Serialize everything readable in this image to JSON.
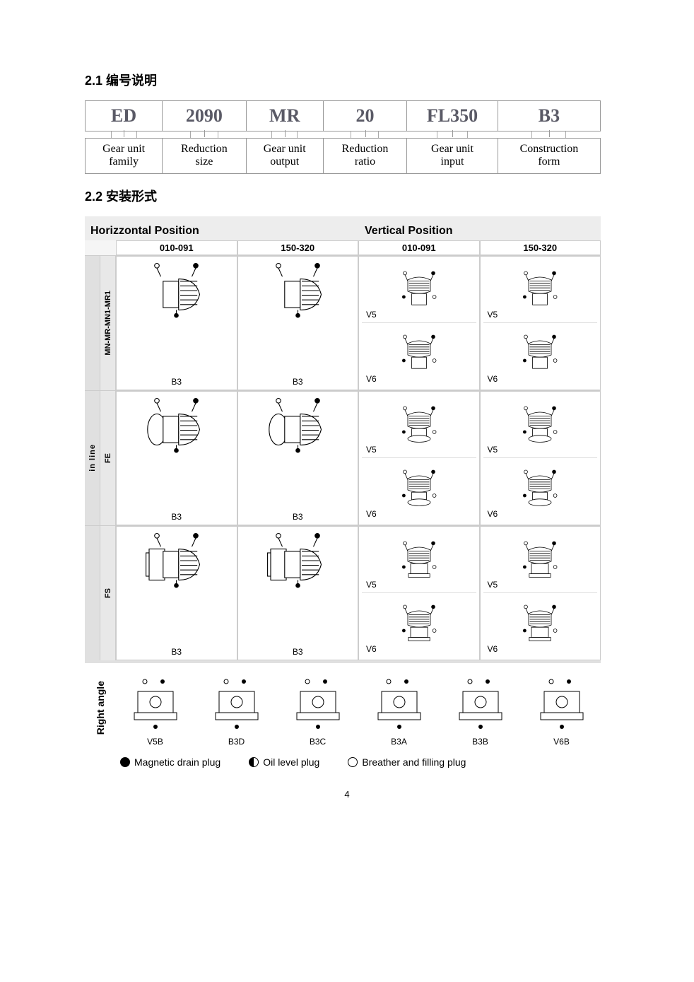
{
  "section21_title": "2.1 编号说明",
  "section22_title": "2.2 安装形式",
  "page_number": "4",
  "code_table": {
    "codes": [
      "ED",
      "2090",
      "MR",
      "20",
      "FL350",
      "B3"
    ],
    "descs": [
      [
        "Gear unit",
        "family"
      ],
      [
        "Reduction",
        "size"
      ],
      [
        "Gear unit",
        "output"
      ],
      [
        "Reduction",
        "ratio"
      ],
      [
        "Gear unit",
        "input"
      ],
      [
        "Construction",
        "form"
      ]
    ]
  },
  "mount_matrix": {
    "position_headers": [
      "Horizzontal Position",
      "Vertical Position"
    ],
    "size_headers": [
      "010-091",
      "150-320",
      "010-091",
      "150-320"
    ],
    "inline_group_label": "in line",
    "variants": [
      {
        "sub_label": "MN-MR-MN1-MR1",
        "cells": [
          {
            "kind": "single",
            "labels": [
              "B3"
            ]
          },
          {
            "kind": "single",
            "labels": [
              "B3"
            ]
          },
          {
            "kind": "split",
            "labels": [
              "V5",
              "V6"
            ]
          },
          {
            "kind": "split",
            "labels": [
              "V5",
              "V6"
            ]
          }
        ]
      },
      {
        "sub_label": "FE",
        "cells": [
          {
            "kind": "single",
            "labels": [
              "B3"
            ]
          },
          {
            "kind": "single",
            "labels": [
              "B3"
            ]
          },
          {
            "kind": "split",
            "labels": [
              "V5",
              "V6"
            ]
          },
          {
            "kind": "split",
            "labels": [
              "V5",
              "V6"
            ]
          }
        ]
      },
      {
        "sub_label": "FS",
        "cells": [
          {
            "kind": "single",
            "labels": [
              "B3"
            ]
          },
          {
            "kind": "single",
            "labels": [
              "B3"
            ]
          },
          {
            "kind": "split",
            "labels": [
              "V5",
              "V6"
            ]
          },
          {
            "kind": "split",
            "labels": [
              "V5",
              "V6"
            ]
          }
        ]
      }
    ],
    "right_angle": {
      "label": "Right angle",
      "items": [
        "V5B",
        "B3D",
        "B3C",
        "B3A",
        "B3B",
        "V6B"
      ]
    }
  },
  "legend": [
    {
      "style": "filled",
      "text": "Magnetic drain plug"
    },
    {
      "style": "half",
      "text": "Oil level plug"
    },
    {
      "style": "open",
      "text": "Breather and filling plug"
    }
  ],
  "glyph": {
    "stroke": "#000000",
    "body_fill": "#ffffff"
  }
}
